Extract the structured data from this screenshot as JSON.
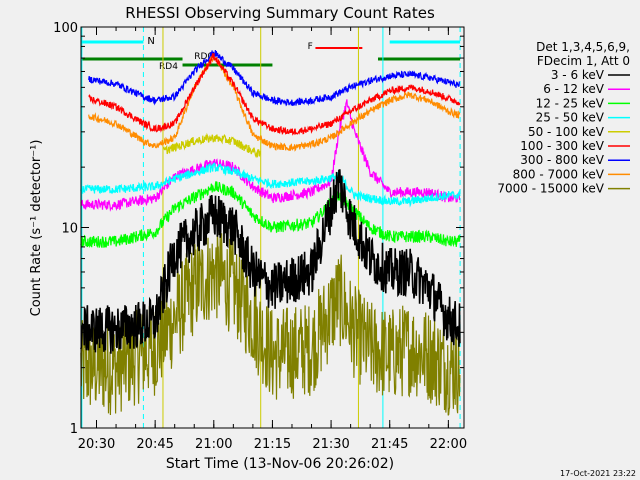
{
  "chart_data": {
    "type": "line",
    "title": "RHESSI Observing Summary Count Rates",
    "xlabel": "Start Time (13-Nov-06 20:26:02)",
    "ylabel": "Count Rate (s⁻¹ detector⁻¹)",
    "yscale": "log",
    "xlim": [
      "20:26:02",
      "22:04:00"
    ],
    "ylim": [
      1,
      100
    ],
    "x_tick_labels": [
      "20:30",
      "20:45",
      "21:00",
      "21:15",
      "21:30",
      "21:45",
      "22:00"
    ],
    "y_tick_labels": [
      "1",
      "10",
      "100"
    ],
    "legend": {
      "placement": "right",
      "header": [
        "Det 1,3,4,5,6,9,",
        "FDecim 1, Att 0"
      ]
    },
    "annotations": [
      "N",
      "RD4",
      "RD0",
      "F"
    ],
    "series": [
      {
        "name": "3 - 6 keV",
        "color": "#000000",
        "t": [
          "20:26",
          "20:35",
          "20:45",
          "20:50",
          "21:00",
          "21:05",
          "21:10",
          "21:15",
          "21:25",
          "21:32",
          "21:35",
          "21:40",
          "21:45",
          "21:50",
          "21:55",
          "22:00",
          "22:03"
        ],
        "values": [
          3.1,
          3.1,
          3.4,
          7.5,
          11.5,
          10.0,
          6.0,
          5.0,
          6.0,
          17.0,
          11.0,
          7.0,
          6.0,
          6.0,
          5.0,
          3.5,
          3.2
        ]
      },
      {
        "name": "6 - 12 keV",
        "color": "#ff00ff",
        "t": [
          "20:26",
          "20:35",
          "20:45",
          "20:50",
          "21:00",
          "21:05",
          "21:10",
          "21:15",
          "21:25",
          "21:30",
          "21:32",
          "21:34",
          "21:36",
          "21:40",
          "21:45",
          "21:50",
          "21:55",
          "22:00",
          "22:03"
        ],
        "values": [
          13.0,
          13.0,
          14.0,
          18.0,
          21.0,
          20.0,
          16.0,
          14.0,
          15.0,
          17.0,
          30.0,
          42.0,
          30.0,
          19.0,
          15.0,
          15.0,
          15.0,
          14.0,
          14.0
        ]
      },
      {
        "name": "12 - 25 keV",
        "color": "#00ff00",
        "t": [
          "20:26",
          "20:35",
          "20:45",
          "20:50",
          "21:00",
          "21:05",
          "21:10",
          "21:15",
          "21:25",
          "21:32",
          "21:36",
          "21:40",
          "21:45",
          "21:50",
          "21:55",
          "22:00",
          "22:03"
        ],
        "values": [
          8.5,
          8.5,
          9.5,
          12.5,
          16.0,
          15.0,
          11.5,
          10.0,
          10.5,
          14.5,
          12.0,
          10.0,
          9.0,
          9.0,
          9.0,
          8.5,
          8.5
        ]
      },
      {
        "name": "25 - 50 keV",
        "color": "#00ffff",
        "t": [
          "20:26",
          "20:35",
          "20:45",
          "20:50",
          "21:00",
          "21:05",
          "21:10",
          "21:15",
          "21:25",
          "21:32",
          "21:36",
          "21:40",
          "21:45",
          "21:50",
          "21:55",
          "22:00",
          "22:03"
        ],
        "values": [
          15.5,
          15.5,
          16.0,
          17.5,
          20.0,
          19.0,
          17.5,
          16.5,
          17.0,
          18.0,
          14.5,
          14.0,
          13.5,
          13.5,
          14.0,
          14.5,
          14.5
        ]
      },
      {
        "name": "50 - 100 keV",
        "color": "#cccc00",
        "t": [
          "20:47",
          "20:55",
          "21:00",
          "21:05",
          "21:10",
          "21:12"
        ],
        "values": [
          24.0,
          27.0,
          28.0,
          27.0,
          24.0,
          23.0
        ]
      },
      {
        "name": "100 - 300 keV",
        "color": "#ff0000",
        "t": [
          "20:28",
          "20:35",
          "20:42",
          "20:45",
          "20:50",
          "20:55",
          "21:00",
          "21:05",
          "21:10",
          "21:15",
          "21:20",
          "21:25",
          "21:30",
          "21:35",
          "21:40",
          "21:45",
          "21:50",
          "21:55",
          "22:00",
          "22:03"
        ],
        "values": [
          44.0,
          40.0,
          33.0,
          31.0,
          33.0,
          50.0,
          72.0,
          52.0,
          35.0,
          31.0,
          30.0,
          31.0,
          33.0,
          38.0,
          43.0,
          48.0,
          50.0,
          48.0,
          44.0,
          42.0
        ]
      },
      {
        "name": "300 - 800 keV",
        "color": "#0000ff",
        "t": [
          "20:28",
          "20:35",
          "20:42",
          "20:45",
          "20:50",
          "20:55",
          "21:00",
          "21:05",
          "21:10",
          "21:15",
          "21:20",
          "21:25",
          "21:30",
          "21:35",
          "21:40",
          "21:45",
          "21:50",
          "21:55",
          "22:00",
          "22:03"
        ],
        "values": [
          55.0,
          52.0,
          45.0,
          43.0,
          45.0,
          60.0,
          75.0,
          62.0,
          47.0,
          43.0,
          42.0,
          43.0,
          45.0,
          50.0,
          54.0,
          57.0,
          58.0,
          56.0,
          53.0,
          51.0
        ]
      },
      {
        "name": "800 - 7000 keV",
        "color": "#ff8c00",
        "t": [
          "20:28",
          "20:35",
          "20:42",
          "20:45",
          "20:50",
          "20:55",
          "21:00",
          "21:05",
          "21:10",
          "21:15",
          "21:20",
          "21:25",
          "21:30",
          "21:35",
          "21:40",
          "21:45",
          "21:50",
          "21:55",
          "22:00",
          "22:03"
        ],
        "values": [
          36.0,
          33.0,
          27.0,
          25.5,
          28.0,
          50.0,
          72.0,
          50.0,
          29.0,
          25.5,
          25.0,
          26.0,
          28.0,
          33.0,
          38.0,
          43.0,
          46.0,
          43.0,
          38.0,
          36.0
        ]
      },
      {
        "name": "7000 - 15000 keV",
        "color": "#808000",
        "t": [
          "20:26",
          "20:35",
          "20:45",
          "20:50",
          "20:55",
          "21:00",
          "21:05",
          "21:10",
          "21:15",
          "21:25",
          "21:32",
          "21:36",
          "21:40",
          "21:45",
          "21:50",
          "21:55",
          "22:00",
          "22:03"
        ],
        "values": [
          2.0,
          2.0,
          2.5,
          3.5,
          5.0,
          6.0,
          5.0,
          3.5,
          2.3,
          2.5,
          4.5,
          3.0,
          2.5,
          2.3,
          2.5,
          2.3,
          2.0,
          2.0
        ]
      }
    ],
    "flags": {
      "night_attenuator": {
        "color": "#00ffff",
        "label": "N",
        "intervals": [
          [
            "20:26",
            "20:42"
          ],
          [
            "21:45",
            "22:03"
          ]
        ]
      },
      "saa_decimation": {
        "color": "#008000",
        "label": "RD4",
        "intervals": [
          [
            "20:26",
            "20:52"
          ],
          [
            "21:42",
            "22:03"
          ]
        ]
      },
      "rd0": {
        "color": "#008000",
        "label": "RD0",
        "intervals": [
          [
            "20:52",
            "21:15"
          ]
        ]
      },
      "flare": {
        "color": "#ff0000",
        "label": "F",
        "intervals": [
          [
            "21:26",
            "21:38"
          ]
        ]
      }
    }
  },
  "footer_timestamp": "17-Oct-2021 23:22"
}
